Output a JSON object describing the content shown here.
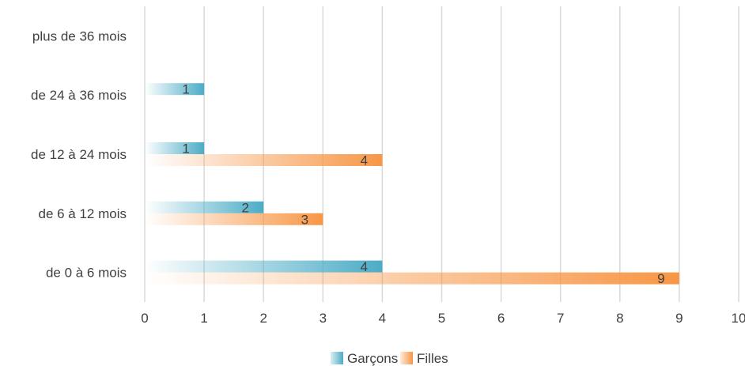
{
  "chart_data": {
    "type": "bar",
    "orientation": "horizontal",
    "title": "",
    "xlabel": "",
    "ylabel": "",
    "categories": [
      "de 0 à 6 mois",
      "de 6 à 12 mois",
      "de 12 à 24 mois",
      "de 24 à 36 mois",
      "plus de 36 mois"
    ],
    "series": [
      {
        "name": "Garçons",
        "values": [
          4,
          2,
          1,
          1,
          null
        ],
        "color": "#4BACC6"
      },
      {
        "name": "Filles",
        "values": [
          9,
          3,
          4,
          null,
          null
        ],
        "color": "#F79646"
      }
    ],
    "xlim": [
      0,
      10
    ],
    "ticks": [
      "0",
      "1",
      "2",
      "3",
      "4",
      "5",
      "6",
      "7",
      "8",
      "9",
      "10"
    ],
    "grid": true,
    "legend": "bottom",
    "bar_style": "gradient"
  }
}
